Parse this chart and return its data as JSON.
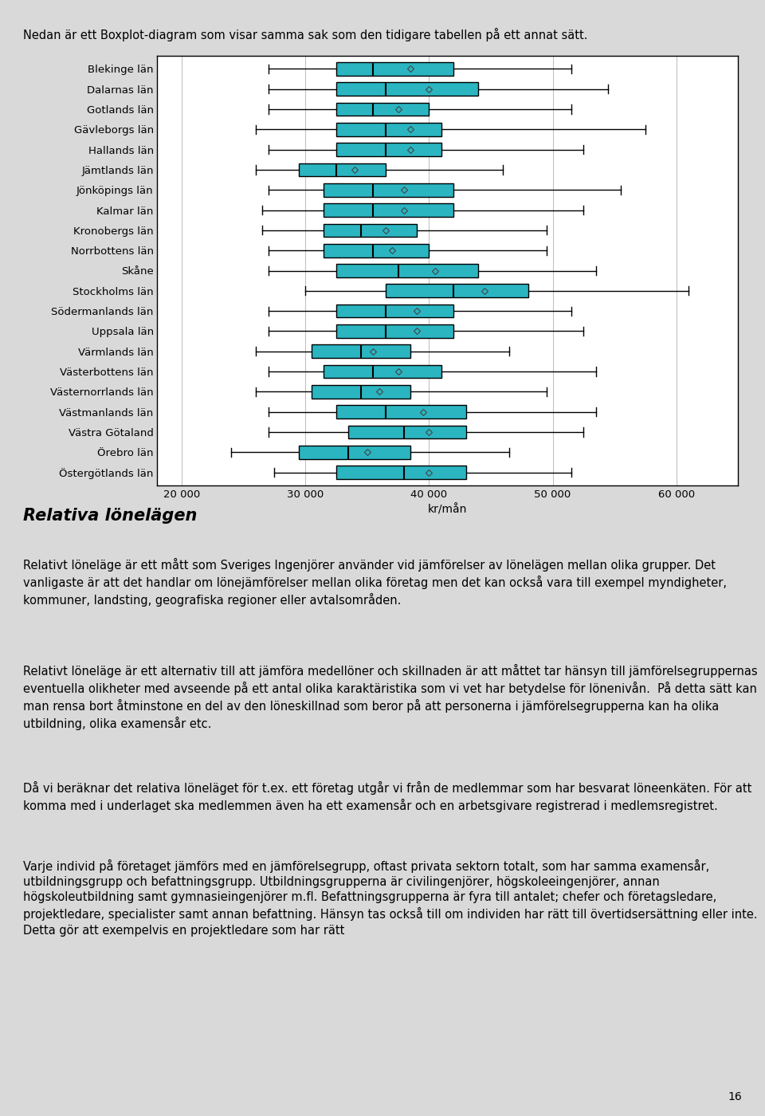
{
  "title_text": "Nedan är ett Boxplot-diagram som visar samma sak som den tidigare tabellen på ett annat sätt.",
  "xlabel": "kr/mån",
  "xlim": [
    18000,
    65000
  ],
  "xticks": [
    20000,
    30000,
    40000,
    50000,
    60000
  ],
  "xtick_labels": [
    "20 000",
    "30 000",
    "40 000",
    "50 000",
    "60 000"
  ],
  "box_color": "#2ab5c1",
  "box_color_edge": "#000000",
  "median_color": "#000000",
  "whisker_color": "#000000",
  "background_color": "#d9d9d9",
  "plot_bg_color": "#ffffff",
  "chart_area_bg": "#d9d9d9",
  "categories": [
    "Blekinge län",
    "Dalarnas län",
    "Gotlands län",
    "Gävleborgs län",
    "Hallands län",
    "Jämtlands län",
    "Jönköpings län",
    "Kalmar län",
    "Kronobergs län",
    "Norrbottens län",
    "Skåne",
    "Stockholms län",
    "Södermanlands län",
    "Uppsala län",
    "Värmlands län",
    "Västerbottens län",
    "Västernorrlands län",
    "Västmanlands län",
    "Västra Götaland",
    "Örebro län",
    "Östergötlands län"
  ],
  "boxes": [
    {
      "whislo": 27000,
      "q1": 32500,
      "med": 35500,
      "q3": 42000,
      "whishi": 51500,
      "mean": 38500
    },
    {
      "whislo": 27000,
      "q1": 32500,
      "med": 36500,
      "q3": 44000,
      "whishi": 54500,
      "mean": 40000
    },
    {
      "whislo": 27000,
      "q1": 32500,
      "med": 35500,
      "q3": 40000,
      "whishi": 51500,
      "mean": 37500
    },
    {
      "whislo": 26000,
      "q1": 32500,
      "med": 36500,
      "q3": 41000,
      "whishi": 57500,
      "mean": 38500
    },
    {
      "whislo": 27000,
      "q1": 32500,
      "med": 36500,
      "q3": 41000,
      "whishi": 52500,
      "mean": 38500
    },
    {
      "whislo": 26000,
      "q1": 29500,
      "med": 32500,
      "q3": 36500,
      "whishi": 46000,
      "mean": 34000
    },
    {
      "whislo": 27000,
      "q1": 31500,
      "med": 35500,
      "q3": 42000,
      "whishi": 55500,
      "mean": 38000
    },
    {
      "whislo": 26500,
      "q1": 31500,
      "med": 35500,
      "q3": 42000,
      "whishi": 52500,
      "mean": 38000
    },
    {
      "whislo": 26500,
      "q1": 31500,
      "med": 34500,
      "q3": 39000,
      "whishi": 49500,
      "mean": 36500
    },
    {
      "whislo": 27000,
      "q1": 31500,
      "med": 35500,
      "q3": 40000,
      "whishi": 49500,
      "mean": 37000
    },
    {
      "whislo": 27000,
      "q1": 32500,
      "med": 37500,
      "q3": 44000,
      "whishi": 53500,
      "mean": 40500
    },
    {
      "whislo": 30000,
      "q1": 36500,
      "med": 42000,
      "q3": 48000,
      "whishi": 61000,
      "mean": 44500
    },
    {
      "whislo": 27000,
      "q1": 32500,
      "med": 36500,
      "q3": 42000,
      "whishi": 51500,
      "mean": 39000
    },
    {
      "whislo": 27000,
      "q1": 32500,
      "med": 36500,
      "q3": 42000,
      "whishi": 52500,
      "mean": 39000
    },
    {
      "whislo": 26000,
      "q1": 30500,
      "med": 34500,
      "q3": 38500,
      "whishi": 46500,
      "mean": 35500
    },
    {
      "whislo": 27000,
      "q1": 31500,
      "med": 35500,
      "q3": 41000,
      "whishi": 53500,
      "mean": 37500
    },
    {
      "whislo": 26000,
      "q1": 30500,
      "med": 34500,
      "q3": 38500,
      "whishi": 49500,
      "mean": 36000
    },
    {
      "whislo": 27000,
      "q1": 32500,
      "med": 36500,
      "q3": 43000,
      "whishi": 53500,
      "mean": 39500
    },
    {
      "whislo": 27000,
      "q1": 33500,
      "med": 38000,
      "q3": 43000,
      "whishi": 52500,
      "mean": 40000
    },
    {
      "whislo": 24000,
      "q1": 29500,
      "med": 33500,
      "q3": 38500,
      "whishi": 46500,
      "mean": 35000
    },
    {
      "whislo": 27500,
      "q1": 32500,
      "med": 38000,
      "q3": 43000,
      "whishi": 51500,
      "mean": 40000
    }
  ],
  "para1_heading": "Relativa lönelägen",
  "para1": "Relativt löneläge är ett mått som Sveriges Ingenjörer använder vid jämförelser av lönelägen mellan olika grupper. Det vanligaste är att det handlar om lönejämförelser mellan olika företag men det kan också vara till exempel myndigheter, kommuner, landsting, geografiska regioner eller avtalsområden.",
  "para2": "Relativt löneläge är ett alternativ till att jämföra medellöner och skillnaden är att måttet tar hänsyn till jämförelsegruppernas eventuella olikheter med avseende på ett antal olika karaktäristika som vi vet har betydelse för lönenivån.  På detta sätt kan man rensa bort åtminstone en del av den löneskillnad som beror på att personerna i jämförelsegrupperna kan ha olika utbildning, olika examensår etc.",
  "para3": "Då vi beräknar det relativa löneläget för t.ex. ett företag utgår vi från de medlemmar som har besvarat löneenkäten. För att komma med i underlaget ska medlemmen även ha ett examensår och en arbetsgivare registrerad i medlemsregistret.",
  "para4": "Varje individ på företaget jämförs med en jämförelsegrupp, oftast privata sektorn totalt, som har samma examensår, utbildningsgrupp och befattningsgrupp. Utbildningsgrupperna är civilingenjörer, högskoleeingenjörer, annan högskoleutbildning samt gymnasieingenjörer m.fl. Befattningsgrupperna är fyra till antalet; chefer och företagsledare, projektledare, specialister samt annan befattning. Hänsyn tas också till om individen har rätt till övertidsersättning eller inte. Detta gör att exempelvis en projektledare som har rätt",
  "page_number": "16"
}
